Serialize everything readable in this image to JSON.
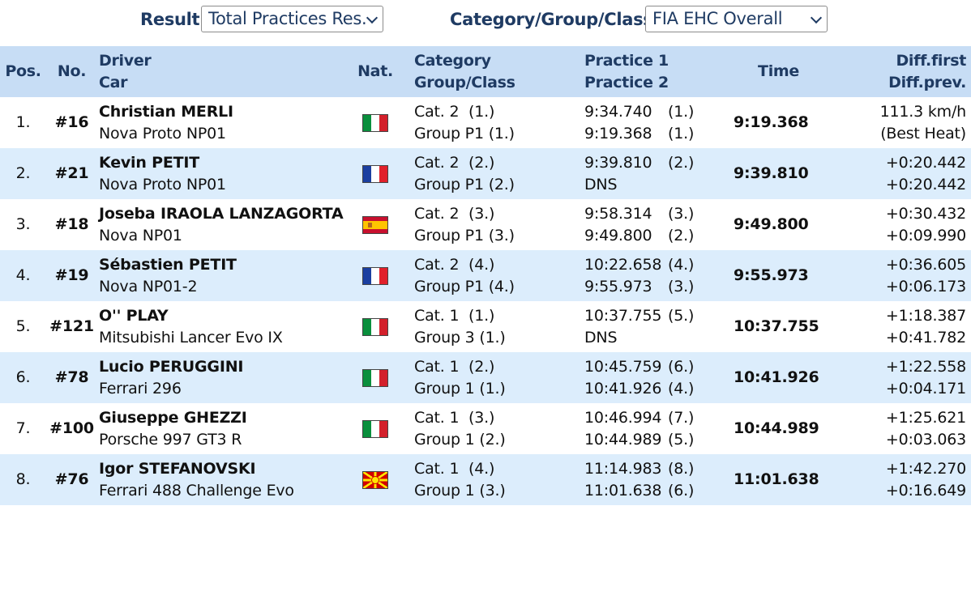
{
  "filters": {
    "result_label": "Result:",
    "result_value": "Total Practices Res.",
    "category_label": "Category/Group/Class:",
    "category_value": "FIA EHC Overall"
  },
  "headers": {
    "pos": "Pos.",
    "no": "No.",
    "driver": "Driver",
    "car": "Car",
    "nat": "Nat.",
    "category": "Category",
    "group_class": "Group/Class",
    "practice1": "Practice 1",
    "practice2": "Practice 2",
    "time": "Time",
    "diff_first": "Diff.first",
    "diff_prev": "Diff.prev."
  },
  "rows": [
    {
      "pos": "1.",
      "no": "#16",
      "driver": "Christian MERLI",
      "car": "Nova Proto NP01",
      "flag": "italy-flag-icon",
      "cat": "Cat. 2",
      "cat_rank": "(1.)",
      "group": "Group P1",
      "group_rank": "(1.)",
      "p1": "9:34.740",
      "p1_rank": "(1.)",
      "p2": "9:19.368",
      "p2_rank": "(1.)",
      "time": "9:19.368",
      "diff1": "111.3 km/h",
      "diff2": "(Best Heat)"
    },
    {
      "pos": "2.",
      "no": "#21",
      "driver": "Kevin PETIT",
      "car": "Nova Proto NP01",
      "flag": "france-flag-icon",
      "cat": "Cat. 2",
      "cat_rank": "(2.)",
      "group": "Group P1",
      "group_rank": "(2.)",
      "p1": "9:39.810",
      "p1_rank": "(2.)",
      "p2": "DNS",
      "p2_rank": "",
      "time": "9:39.810",
      "diff1": "+0:20.442",
      "diff2": "+0:20.442"
    },
    {
      "pos": "3.",
      "no": "#18",
      "driver": "Joseba IRAOLA LANZAGORTA",
      "car": "Nova NP01",
      "flag": "spain-flag-icon",
      "cat": "Cat. 2",
      "cat_rank": "(3.)",
      "group": "Group P1",
      "group_rank": "(3.)",
      "p1": "9:58.314",
      "p1_rank": "(3.)",
      "p2": "9:49.800",
      "p2_rank": "(2.)",
      "time": "9:49.800",
      "diff1": "+0:30.432",
      "diff2": "+0:09.990"
    },
    {
      "pos": "4.",
      "no": "#19",
      "driver": "Sébastien PETIT",
      "car": "Nova NP01-2",
      "flag": "france-flag-icon",
      "cat": "Cat. 2",
      "cat_rank": "(4.)",
      "group": "Group P1",
      "group_rank": "(4.)",
      "p1": "10:22.658",
      "p1_rank": "(4.)",
      "p2": "9:55.973",
      "p2_rank": "(3.)",
      "time": "9:55.973",
      "diff1": "+0:36.605",
      "diff2": "+0:06.173"
    },
    {
      "pos": "5.",
      "no": "#121",
      "driver": "O'' PLAY",
      "car": "Mitsubishi Lancer Evo IX",
      "flag": "italy-flag-icon",
      "cat": "Cat. 1",
      "cat_rank": "(1.)",
      "group": "Group 3",
      "group_rank": "(1.)",
      "p1": "10:37.755",
      "p1_rank": "(5.)",
      "p2": "DNS",
      "p2_rank": "",
      "time": "10:37.755",
      "diff1": "+1:18.387",
      "diff2": "+0:41.782"
    },
    {
      "pos": "6.",
      "no": "#78",
      "driver": "Lucio PERUGGINI",
      "car": "Ferrari 296",
      "flag": "italy-flag-icon",
      "cat": "Cat. 1",
      "cat_rank": "(2.)",
      "group": "Group 1",
      "group_rank": "(1.)",
      "p1": "10:45.759",
      "p1_rank": "(6.)",
      "p2": "10:41.926",
      "p2_rank": "(4.)",
      "time": "10:41.926",
      "diff1": "+1:22.558",
      "diff2": "+0:04.171"
    },
    {
      "pos": "7.",
      "no": "#100",
      "driver": "Giuseppe GHEZZI",
      "car": "Porsche 997 GT3 R",
      "flag": "italy-flag-icon",
      "cat": "Cat. 1",
      "cat_rank": "(3.)",
      "group": "Group 1",
      "group_rank": "(2.)",
      "p1": "10:46.994",
      "p1_rank": "(7.)",
      "p2": "10:44.989",
      "p2_rank": "(5.)",
      "time": "10:44.989",
      "diff1": "+1:25.621",
      "diff2": "+0:03.063"
    },
    {
      "pos": "8.",
      "no": "#76",
      "driver": "Igor STEFANOVSKI",
      "car": "Ferrari 488 Challenge Evo",
      "flag": "north-macedonia-flag-icon",
      "cat": "Cat. 1",
      "cat_rank": "(4.)",
      "group": "Group 1",
      "group_rank": "(3.)",
      "p1": "11:14.983",
      "p1_rank": "(8.)",
      "p2": "11:01.638",
      "p2_rank": "(6.)",
      "time": "11:01.638",
      "diff1": "+1:42.270",
      "diff2": "+0:16.649"
    }
  ]
}
